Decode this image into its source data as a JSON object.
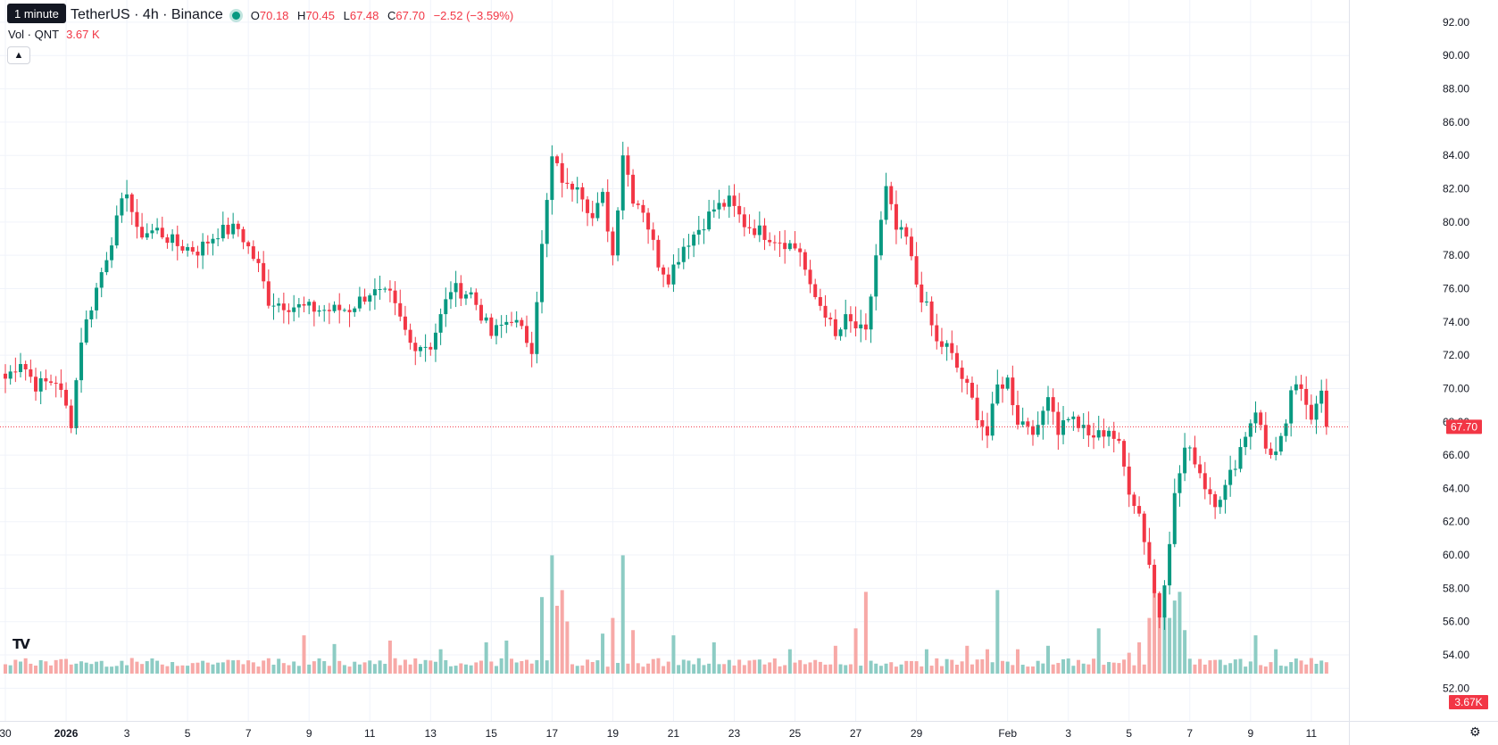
{
  "header": {
    "tooltip": "1 minute",
    "title": "TetherUS · 4h · Binance",
    "ohlc": {
      "o_label": "O",
      "o": "70.18",
      "h_label": "H",
      "h": "70.45",
      "l_label": "L",
      "l": "67.48",
      "c_label": "C",
      "c": "67.70",
      "change": "−2.52 (−3.59%)"
    },
    "volume_label": "Vol · QNT",
    "volume_value": "3.67 K"
  },
  "colors": {
    "up": "#089981",
    "down": "#f23645",
    "up_vol": "#8dccc4",
    "down_vol": "#f7a9a7",
    "grid": "#f0f3fa"
  },
  "icons": {
    "logo": "tradingview-logo",
    "collapse": "chevron-up-icon",
    "settings": "gear-icon"
  },
  "chart_data": {
    "type": "candlestick",
    "price_axis": {
      "range": [
        51,
        92.8
      ],
      "ticks": [
        "52.00",
        "54.00",
        "56.00",
        "58.00",
        "60.00",
        "62.00",
        "64.00",
        "66.00",
        "68.00",
        "70.00",
        "72.00",
        "74.00",
        "76.00",
        "78.00",
        "80.00",
        "82.00",
        "84.00",
        "86.00",
        "88.00",
        "90.00",
        "92.00"
      ]
    },
    "time_axis": {
      "ticks": [
        {
          "label": "30",
          "bold": false,
          "bar": 0
        },
        {
          "label": "2026",
          "bold": true,
          "bar": 12
        },
        {
          "label": "3",
          "bold": false,
          "bar": 24
        },
        {
          "label": "5",
          "bold": false,
          "bar": 36
        },
        {
          "label": "7",
          "bold": false,
          "bar": 48
        },
        {
          "label": "9",
          "bold": false,
          "bar": 60
        },
        {
          "label": "11",
          "bold": false,
          "bar": 72
        },
        {
          "label": "13",
          "bold": false,
          "bar": 84
        },
        {
          "label": "15",
          "bold": false,
          "bar": 96
        },
        {
          "label": "17",
          "bold": false,
          "bar": 108
        },
        {
          "label": "19",
          "bold": false,
          "bar": 120
        },
        {
          "label": "21",
          "bold": false,
          "bar": 132
        },
        {
          "label": "23",
          "bold": false,
          "bar": 144
        },
        {
          "label": "25",
          "bold": false,
          "bar": 156
        },
        {
          "label": "27",
          "bold": false,
          "bar": 168
        },
        {
          "label": "29",
          "bold": false,
          "bar": 180
        },
        {
          "label": "Feb",
          "bold": false,
          "bar": 198
        },
        {
          "label": "3",
          "bold": false,
          "bar": 210
        },
        {
          "label": "5",
          "bold": false,
          "bar": 222
        },
        {
          "label": "7",
          "bold": false,
          "bar": 234
        },
        {
          "label": "9",
          "bold": false,
          "bar": 246
        },
        {
          "label": "11",
          "bold": false,
          "bar": 258
        }
      ]
    },
    "last_price": "67.70",
    "last_price_value": 67.7,
    "last_volume": "3.67K",
    "keypoints": [
      [
        0,
        70.6
      ],
      [
        3,
        71.7
      ],
      [
        6,
        70.2
      ],
      [
        10,
        70.5
      ],
      [
        13,
        68.0
      ],
      [
        15,
        73.0
      ],
      [
        18,
        76.0
      ],
      [
        20,
        78.0
      ],
      [
        24,
        82.0
      ],
      [
        26,
        79.3
      ],
      [
        30,
        79.5
      ],
      [
        34,
        78.6
      ],
      [
        38,
        78.3
      ],
      [
        42,
        79.4
      ],
      [
        46,
        79.6
      ],
      [
        50,
        77.3
      ],
      [
        52,
        75.3
      ],
      [
        56,
        75.0
      ],
      [
        60,
        74.8
      ],
      [
        64,
        74.7
      ],
      [
        68,
        74.8
      ],
      [
        72,
        75.8
      ],
      [
        76,
        75.5
      ],
      [
        80,
        72.7
      ],
      [
        84,
        72.6
      ],
      [
        88,
        76.0
      ],
      [
        92,
        75.7
      ],
      [
        96,
        73.2
      ],
      [
        100,
        74.3
      ],
      [
        104,
        72.5
      ],
      [
        106,
        78.5
      ],
      [
        108,
        83.8
      ],
      [
        111,
        82.0
      ],
      [
        113,
        82.5
      ],
      [
        116,
        80.2
      ],
      [
        118,
        81.5
      ],
      [
        120,
        78.0
      ],
      [
        122,
        84.2
      ],
      [
        124,
        81.5
      ],
      [
        126,
        80.8
      ],
      [
        129,
        77.6
      ],
      [
        131,
        76.7
      ],
      [
        134,
        78.6
      ],
      [
        137,
        79.6
      ],
      [
        140,
        80.8
      ],
      [
        143,
        81.2
      ],
      [
        146,
        79.9
      ],
      [
        150,
        79.3
      ],
      [
        154,
        78.8
      ],
      [
        157,
        78.3
      ],
      [
        159,
        75.9
      ],
      [
        162,
        74.6
      ],
      [
        164,
        73.0
      ],
      [
        166,
        74.1
      ],
      [
        170,
        73.2
      ],
      [
        172,
        78.0
      ],
      [
        174,
        81.9
      ],
      [
        176,
        79.5
      ],
      [
        178,
        79.0
      ],
      [
        180,
        76.3
      ],
      [
        182,
        74.8
      ],
      [
        184,
        72.7
      ],
      [
        186,
        72.5
      ],
      [
        190,
        70.0
      ],
      [
        192,
        68.5
      ],
      [
        194,
        67.2
      ],
      [
        196,
        70.1
      ],
      [
        198,
        70.5
      ],
      [
        200,
        68.1
      ],
      [
        202,
        67.9
      ],
      [
        204,
        67.4
      ],
      [
        206,
        69.9
      ],
      [
        208,
        67.5
      ],
      [
        210,
        68.4
      ],
      [
        212,
        67.8
      ],
      [
        214,
        67.1
      ],
      [
        216,
        67.2
      ],
      [
        218,
        67.6
      ],
      [
        220,
        66.5
      ],
      [
        222,
        64.0
      ],
      [
        224,
        62.5
      ],
      [
        226,
        59.5
      ],
      [
        227,
        57.7
      ],
      [
        228,
        56.4
      ],
      [
        229,
        58.6
      ],
      [
        231,
        63.5
      ],
      [
        233,
        66.4
      ],
      [
        235,
        65.8
      ],
      [
        237,
        64.2
      ],
      [
        239,
        63.3
      ],
      [
        241,
        64.0
      ],
      [
        243,
        65.6
      ],
      [
        245,
        67.3
      ],
      [
        247,
        68.8
      ],
      [
        249,
        66.4
      ],
      [
        251,
        66.1
      ],
      [
        253,
        67.5
      ],
      [
        254,
        70.0
      ],
      [
        256,
        69.7
      ],
      [
        258,
        68.5
      ],
      [
        260,
        70.2
      ],
      [
        261,
        67.7
      ]
    ],
    "volume_range": [
      0,
      100
    ],
    "volume_spikes": {
      "59": 22,
      "65": 17,
      "76": 19,
      "86": 14,
      "95": 18,
      "99": 19,
      "106": 44,
      "108": 68,
      "109": 39,
      "110": 48,
      "111": 30,
      "118": 23,
      "120": 32,
      "122": 68,
      "124": 25,
      "132": 22,
      "140": 18,
      "155": 14,
      "164": 16,
      "168": 26,
      "170": 47,
      "182": 14,
      "190": 16,
      "194": 14,
      "196": 48,
      "200": 14,
      "206": 16,
      "216": 26,
      "222": 12,
      "224": 18,
      "226": 32,
      "227": 48,
      "228": 45,
      "229": 34,
      "230": 32,
      "231": 42,
      "232": 47,
      "233": 25,
      "247": 22,
      "251": 14
    }
  }
}
